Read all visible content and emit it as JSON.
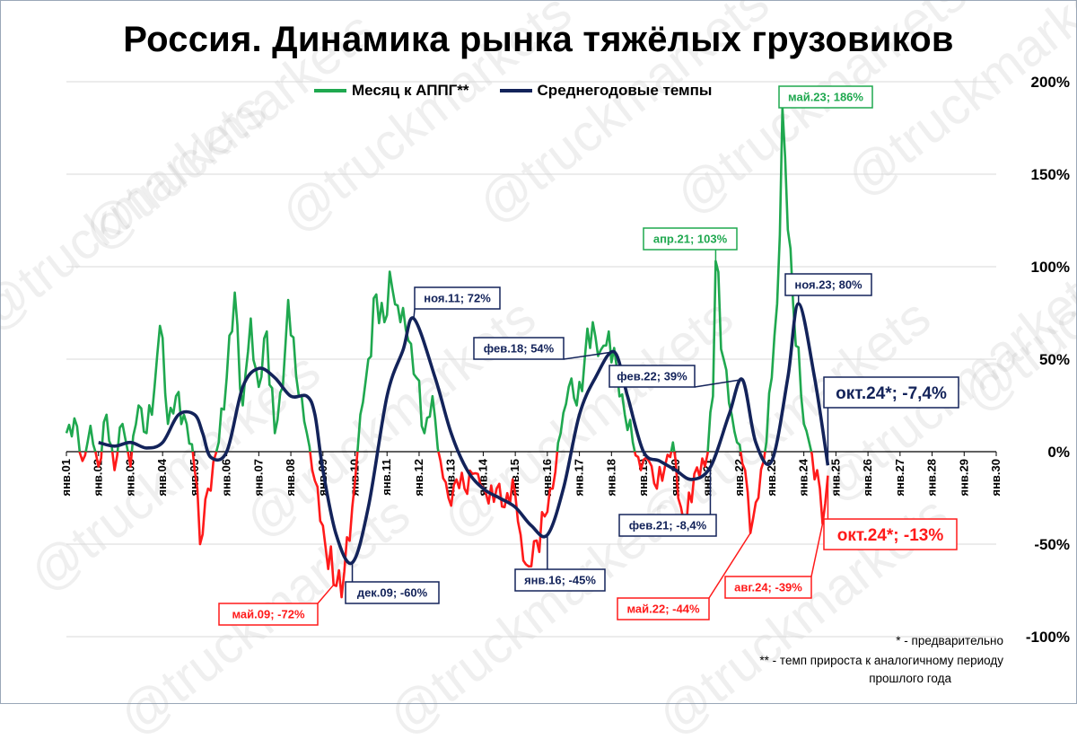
{
  "title": "Россия. Динамика рынка тяжёлых грузовиков",
  "watermark": "@truckmarkets",
  "notes": {
    "line1": "* - предварительно",
    "line2": "** - темп прироста к аналогичному периоду",
    "line3": "прошлого года"
  },
  "colors": {
    "green": "#1fa84f",
    "red": "#ff1a1a",
    "navy": "#13235a",
    "grid": "#d9d9d9"
  },
  "chart_data": {
    "type": "line",
    "x_start": "янв.01",
    "x_end": "янв.30",
    "x_tick_labels": [
      "янв.01",
      "янв.02",
      "янв.03",
      "янв.04",
      "янв.05",
      "янв.06",
      "янв.07",
      "янв.08",
      "янв.09",
      "янв.10",
      "янв.11",
      "янв.12",
      "янв.13",
      "янв.14",
      "янв.15",
      "янв.16",
      "янв.17",
      "янв.18",
      "янв.19",
      "янв.20",
      "янв.21",
      "янв.22",
      "янв.23",
      "янв.24",
      "янв.25",
      "янв.26",
      "янв.27",
      "янв.28",
      "янв.29",
      "янв.30"
    ],
    "ylim": [
      -100,
      200
    ],
    "y_ticks": [
      -100,
      -50,
      0,
      50,
      100,
      150,
      200
    ],
    "y_tick_labels": [
      "-100%",
      "-50%",
      "0%",
      "50%",
      "100%",
      "150%",
      "200%"
    ],
    "y_axis_side": "right",
    "grid": "horizontal",
    "legend_position": "top",
    "series": [
      {
        "name": "Месяц к АППГ**",
        "color_positive": "#1fa84f",
        "color_negative": "#ff1a1a",
        "anchors": [
          [
            "янв.01",
            10
          ],
          [
            "апр.01",
            18
          ],
          [
            "июл.01",
            -5
          ],
          [
            "окт.01",
            14
          ],
          [
            "янв.02",
            -8
          ],
          [
            "апр.02",
            20
          ],
          [
            "июл.02",
            -10
          ],
          [
            "окт.02",
            15
          ],
          [
            "янв.03",
            -8
          ],
          [
            "апр.03",
            25
          ],
          [
            "июл.03",
            10
          ],
          [
            "окт.03",
            35
          ],
          [
            "дек.03",
            68
          ],
          [
            "мар.04",
            15
          ],
          [
            "июн.04",
            30
          ],
          [
            "окт.04",
            15
          ],
          [
            "янв.05",
            -10
          ],
          [
            "фев.05",
            -20
          ],
          [
            "мар.05",
            -50
          ],
          [
            "июн.05",
            -20
          ],
          [
            "окт.05",
            5
          ],
          [
            "янв.06",
            40
          ],
          [
            "апр.06",
            86
          ],
          [
            "июл.06",
            25
          ],
          [
            "окт.06",
            72
          ],
          [
            "янв.07",
            35
          ],
          [
            "апр.07",
            65
          ],
          [
            "июл.07",
            10
          ],
          [
            "окт.07",
            35
          ],
          [
            "дек.07",
            82
          ],
          [
            "апр.08",
            30
          ],
          [
            "июл.08",
            10
          ],
          [
            "сен.08",
            -10
          ],
          [
            "янв.09",
            -40
          ],
          [
            "май.09",
            -72
          ],
          [
            "сен.09",
            -65
          ],
          [
            "дек.09",
            -30
          ],
          [
            "мар.10",
            20
          ],
          [
            "июн.10",
            50
          ],
          [
            "сен.10",
            85
          ],
          [
            "дек.10",
            70
          ],
          [
            "мар.11",
            88
          ],
          [
            "июн.11",
            70
          ],
          [
            "сен.11",
            60
          ],
          [
            "дек.11",
            40
          ],
          [
            "мар.12",
            10
          ],
          [
            "июн.12",
            30
          ],
          [
            "сен.12",
            -5
          ],
          [
            "дек.12",
            -25
          ],
          [
            "мар.13",
            -15
          ],
          [
            "июн.13",
            -20
          ],
          [
            "сен.13",
            -12
          ],
          [
            "дек.13",
            -18
          ],
          [
            "мар.14",
            -28
          ],
          [
            "июн.14",
            -20
          ],
          [
            "сен.14",
            -30
          ],
          [
            "дек.14",
            -15
          ],
          [
            "мар.15",
            -45
          ],
          [
            "июн.15",
            -62
          ],
          [
            "сен.15",
            -48
          ],
          [
            "дек.15",
            -35
          ],
          [
            "мар.16",
            -20
          ],
          [
            "июн.16",
            10
          ],
          [
            "сен.16",
            35
          ],
          [
            "дек.16",
            25
          ],
          [
            "мар.17",
            50
          ],
          [
            "июн.17",
            70
          ],
          [
            "сен.17",
            55
          ],
          [
            "дек.17",
            65
          ],
          [
            "мар.18",
            45
          ],
          [
            "июн.18",
            20
          ],
          [
            "сен.18",
            5
          ],
          [
            "дек.18",
            -10
          ],
          [
            "мар.19",
            -5
          ],
          [
            "июн.19",
            -20
          ],
          [
            "сен.19",
            -8
          ],
          [
            "дек.19",
            5
          ],
          [
            "мар.20",
            -30
          ],
          [
            "май.20",
            -40
          ],
          [
            "авг.20",
            -12
          ],
          [
            "дек.20",
            -8
          ],
          [
            "мар.21",
            30
          ],
          [
            "апр.21",
            103
          ],
          [
            "июл.21",
            50
          ],
          [
            "окт.21",
            20
          ],
          [
            "дек.21",
            5
          ],
          [
            "мар.22",
            -10
          ],
          [
            "май.22",
            -44
          ],
          [
            "авг.22",
            -25
          ],
          [
            "окт.22",
            -5
          ],
          [
            "янв.23",
            40
          ],
          [
            "мар.23",
            80
          ],
          [
            "май.23",
            186
          ],
          [
            "июл.23",
            120
          ],
          [
            "сен.23",
            80
          ],
          [
            "дек.23",
            30
          ],
          [
            "янв.24",
            15
          ],
          [
            "мар.24",
            5
          ],
          [
            "май.24",
            -15
          ],
          [
            "июн.24",
            -10
          ],
          [
            "авг.24",
            -39
          ],
          [
            "окт.24",
            -13
          ]
        ]
      },
      {
        "name": "Среднегодовые темпы",
        "color": "#13235a",
        "anchors": [
          [
            "янв.02",
            5
          ],
          [
            "июл.02",
            3
          ],
          [
            "янв.03",
            5
          ],
          [
            "июл.03",
            2
          ],
          [
            "янв.04",
            5
          ],
          [
            "июл.04",
            20
          ],
          [
            "янв.05",
            20
          ],
          [
            "апр.05",
            10
          ],
          [
            "июл.05",
            -3
          ],
          [
            "янв.06",
            0
          ],
          [
            "июл.06",
            35
          ],
          [
            "янв.07",
            45
          ],
          [
            "июл.07",
            40
          ],
          [
            "янв.08",
            30
          ],
          [
            "июл.08",
            30
          ],
          [
            "окт.08",
            20
          ],
          [
            "янв.09",
            -10
          ],
          [
            "июн.09",
            -45
          ],
          [
            "дек.09",
            -60
          ],
          [
            "июн.10",
            -30
          ],
          [
            "янв.11",
            30
          ],
          [
            "июл.11",
            55
          ],
          [
            "ноя.11",
            72
          ],
          [
            "июл.12",
            40
          ],
          [
            "янв.13",
            10
          ],
          [
            "июл.13",
            -10
          ],
          [
            "янв.14",
            -20
          ],
          [
            "июл.14",
            -25
          ],
          [
            "янв.15",
            -30
          ],
          [
            "июл.15",
            -40
          ],
          [
            "янв.16",
            -45
          ],
          [
            "июл.16",
            -20
          ],
          [
            "янв.17",
            20
          ],
          [
            "июл.17",
            40
          ],
          [
            "фев.18",
            54
          ],
          [
            "июл.18",
            30
          ],
          [
            "янв.19",
            0
          ],
          [
            "июл.19",
            -5
          ],
          [
            "янв.20",
            -10
          ],
          [
            "июл.20",
            -15
          ],
          [
            "фев.21",
            -8.4
          ],
          [
            "сен.21",
            20
          ],
          [
            "фев.22",
            39
          ],
          [
            "июл.22",
            5
          ],
          [
            "янв.23",
            -5
          ],
          [
            "июл.23",
            40
          ],
          [
            "ноя.23",
            80
          ],
          [
            "май.24",
            40
          ],
          [
            "окт.24",
            -7.4
          ]
        ]
      }
    ],
    "annotations": [
      {
        "text": "май.09; -72%",
        "series": "Месяц к АППГ**",
        "color": "red"
      },
      {
        "text": "дек.09; -60%",
        "series": "Среднегодовые темпы",
        "color": "navy"
      },
      {
        "text": "ноя.11; 72%",
        "series": "Среднегодовые темпы",
        "color": "navy"
      },
      {
        "text": "фев.18; 54%",
        "series": "Среднегодовые темпы",
        "color": "navy"
      },
      {
        "text": "янв.16; -45%",
        "series": "Среднегодовые темпы",
        "color": "navy"
      },
      {
        "text": "фев.22; 39%",
        "series": "Среднегодовые темпы",
        "color": "navy"
      },
      {
        "text": "фев.21; -8,4%",
        "series": "Среднегодовые темпы",
        "color": "navy"
      },
      {
        "text": "апр.21; 103%",
        "series": "Месяц к АППГ**",
        "color": "green"
      },
      {
        "text": "май.22; -44%",
        "series": "Месяц к АППГ**",
        "color": "red"
      },
      {
        "text": "май.23; 186%",
        "series": "Месяц к АППГ**",
        "color": "green"
      },
      {
        "text": "ноя.23; 80%",
        "series": "Среднегодовые темпы",
        "color": "navy"
      },
      {
        "text": "авг.24; -39%",
        "series": "Месяц к АППГ**",
        "color": "red"
      },
      {
        "text": "окт.24*; -7,4%",
        "series": "Среднегодовые темпы",
        "color": "navy"
      },
      {
        "text": "окт.24*; -13%",
        "series": "Месяц к АППГ**",
        "color": "red"
      }
    ]
  }
}
